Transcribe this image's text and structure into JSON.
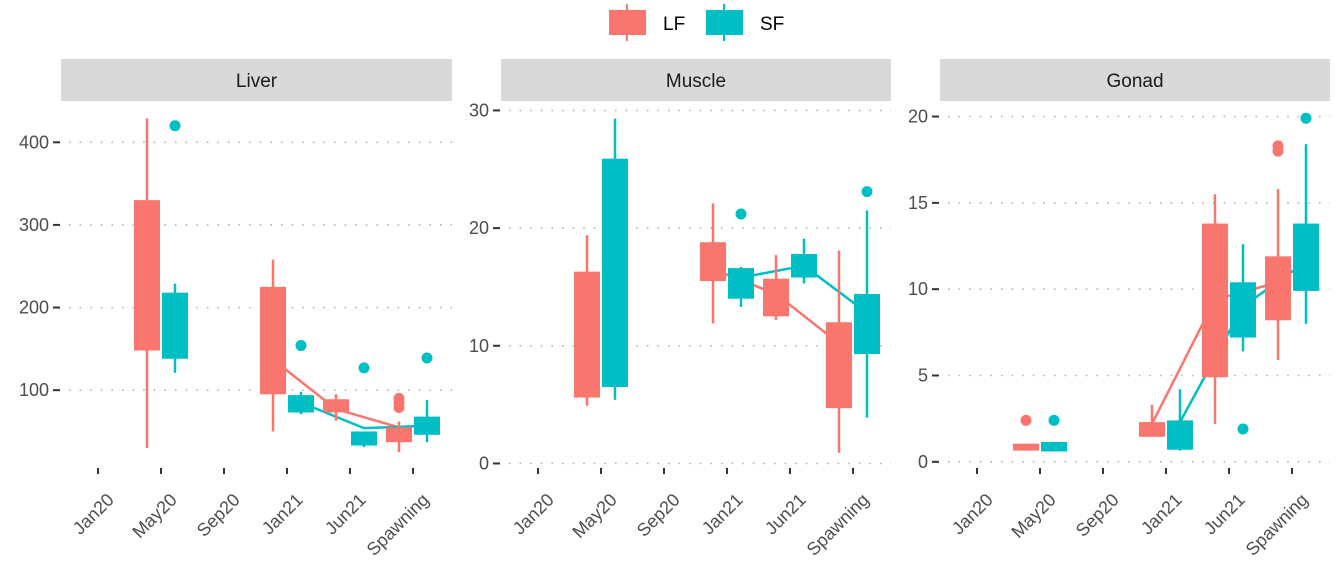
{
  "chart_data": {
    "type": "boxplot",
    "title": "",
    "xlabel": "",
    "ylabel": "",
    "grid": "major y, dotted",
    "legend": {
      "position": "top-center",
      "entries": [
        {
          "name": "LF",
          "color": "#F8766D"
        },
        {
          "name": "SF",
          "color": "#00BFC4"
        }
      ]
    },
    "categories": [
      "Jan20",
      "May20",
      "Sep20",
      "Jan21",
      "Jun21",
      "Spawning"
    ],
    "median_lines": "connect medians per series from Jan21 through Spawning",
    "panels": [
      {
        "name": "Liver",
        "ylim": [
          7,
          450
        ],
        "yticks": [
          100,
          200,
          300,
          400
        ],
        "series": [
          {
            "name": "LF",
            "boxes": [
              {
                "category": "May20",
                "lower_whisker": 30,
                "q1": 148,
                "median": 240,
                "q3": 330,
                "upper_whisker": 429,
                "outliers": []
              },
              {
                "category": "Jan21",
                "lower_whisker": 50,
                "q1": 95,
                "median": 137,
                "q3": 225,
                "upper_whisker": 258,
                "outliers": []
              },
              {
                "category": "Jun21",
                "lower_whisker": 63,
                "q1": 73,
                "median": 77,
                "q3": 89,
                "upper_whisker": 95,
                "outliers": []
              },
              {
                "category": "Spawning",
                "lower_whisker": 25,
                "q1": 37,
                "median": 55,
                "q3": 55,
                "upper_whisker": 62,
                "outliers": [
                  90,
                  85,
                  79
                ]
              }
            ]
          },
          {
            "name": "SF",
            "boxes": [
              {
                "category": "May20",
                "lower_whisker": 121,
                "q1": 138,
                "median": 180,
                "q3": 218,
                "upper_whisker": 229,
                "outliers": [
                  420
                ]
              },
              {
                "category": "Jan21",
                "lower_whisker": 71,
                "q1": 73,
                "median": 85,
                "q3": 94,
                "upper_whisker": 98,
                "outliers": [
                  154
                ]
              },
              {
                "category": "Jun21",
                "lower_whisker": 31,
                "q1": 33,
                "median": 54,
                "q3": 50,
                "upper_whisker": 50,
                "outliers": [
                  127
                ]
              },
              {
                "category": "Spawning",
                "lower_whisker": 37,
                "q1": 46,
                "median": 57,
                "q3": 68,
                "upper_whisker": 88,
                "outliers": [
                  139
                ]
              }
            ]
          }
        ]
      },
      {
        "name": "Muscle",
        "ylim": [
          -0.3,
          30.8
        ],
        "yticks": [
          0,
          10,
          20,
          30
        ],
        "series": [
          {
            "name": "LF",
            "boxes": [
              {
                "category": "May20",
                "lower_whisker": 4.9,
                "q1": 5.6,
                "median": 10.5,
                "q3": 16.3,
                "upper_whisker": 19.4,
                "outliers": []
              },
              {
                "category": "Jan21",
                "lower_whisker": 11.9,
                "q1": 15.5,
                "median": 16.5,
                "q3": 18.8,
                "upper_whisker": 22.1,
                "outliers": []
              },
              {
                "category": "Jun21",
                "lower_whisker": 12.2,
                "q1": 12.5,
                "median": 14.4,
                "q3": 15.7,
                "upper_whisker": 17.7,
                "outliers": []
              },
              {
                "category": "Spawning",
                "lower_whisker": 0.9,
                "q1": 4.7,
                "median": 10.2,
                "q3": 12.0,
                "upper_whisker": 18.1,
                "outliers": []
              }
            ]
          },
          {
            "name": "SF",
            "boxes": [
              {
                "category": "May20",
                "lower_whisker": 5.4,
                "q1": 6.5,
                "median": 15.0,
                "q3": 25.9,
                "upper_whisker": 29.3,
                "outliers": []
              },
              {
                "category": "Jan21",
                "lower_whisker": 13.3,
                "q1": 14.0,
                "median": 15.8,
                "q3": 16.6,
                "upper_whisker": 16.7,
                "outliers": [
                  21.2
                ]
              },
              {
                "category": "Jun21",
                "lower_whisker": 15.3,
                "q1": 15.8,
                "median": 16.8,
                "q3": 17.8,
                "upper_whisker": 19.1,
                "outliers": []
              },
              {
                "category": "Spawning",
                "lower_whisker": 3.9,
                "q1": 9.3,
                "median": 12.8,
                "q3": 14.4,
                "upper_whisker": 21.5,
                "outliers": [
                  23.1
                ]
              }
            ]
          }
        ]
      },
      {
        "name": "Gonad",
        "ylim": [
          -0.3,
          20.9
        ],
        "yticks": [
          0,
          5,
          10,
          15,
          20
        ],
        "series": [
          {
            "name": "LF",
            "boxes": [
              {
                "category": "May20",
                "lower_whisker": 0.65,
                "q1": 0.65,
                "median": 0.8,
                "q3": 1.05,
                "upper_whisker": 1.05,
                "outliers": [
                  2.4
                ]
              },
              {
                "category": "Jan21",
                "lower_whisker": 1.45,
                "q1": 1.45,
                "median": 2.2,
                "q3": 2.3,
                "upper_whisker": 3.3,
                "outliers": []
              },
              {
                "category": "Jun21",
                "lower_whisker": 2.2,
                "q1": 4.9,
                "median": 9.4,
                "q3": 13.8,
                "upper_whisker": 15.5,
                "outliers": []
              },
              {
                "category": "Spawning",
                "lower_whisker": 5.9,
                "q1": 8.2,
                "median": 10.4,
                "q3": 11.9,
                "upper_whisker": 15.8,
                "outliers": [
                  18.0,
                  18.3
                ]
              }
            ]
          },
          {
            "name": "SF",
            "boxes": [
              {
                "category": "May20",
                "lower_whisker": 0.6,
                "q1": 0.6,
                "median": 0.8,
                "q3": 1.15,
                "upper_whisker": 1.15,
                "outliers": [
                  2.4
                ]
              },
              {
                "category": "Jan21",
                "lower_whisker": 0.65,
                "q1": 0.7,
                "median": 2.3,
                "q3": 2.4,
                "upper_whisker": 4.2,
                "outliers": []
              },
              {
                "category": "Jun21",
                "lower_whisker": 6.4,
                "q1": 7.2,
                "median": 9.0,
                "q3": 10.4,
                "upper_whisker": 12.6,
                "outliers": [
                  1.9
                ]
              },
              {
                "category": "Spawning",
                "lower_whisker": 8.0,
                "q1": 9.9,
                "median": 11.6,
                "q3": 13.8,
                "upper_whisker": 18.4,
                "outliers": [
                  19.9
                ]
              }
            ]
          }
        ]
      }
    ]
  }
}
